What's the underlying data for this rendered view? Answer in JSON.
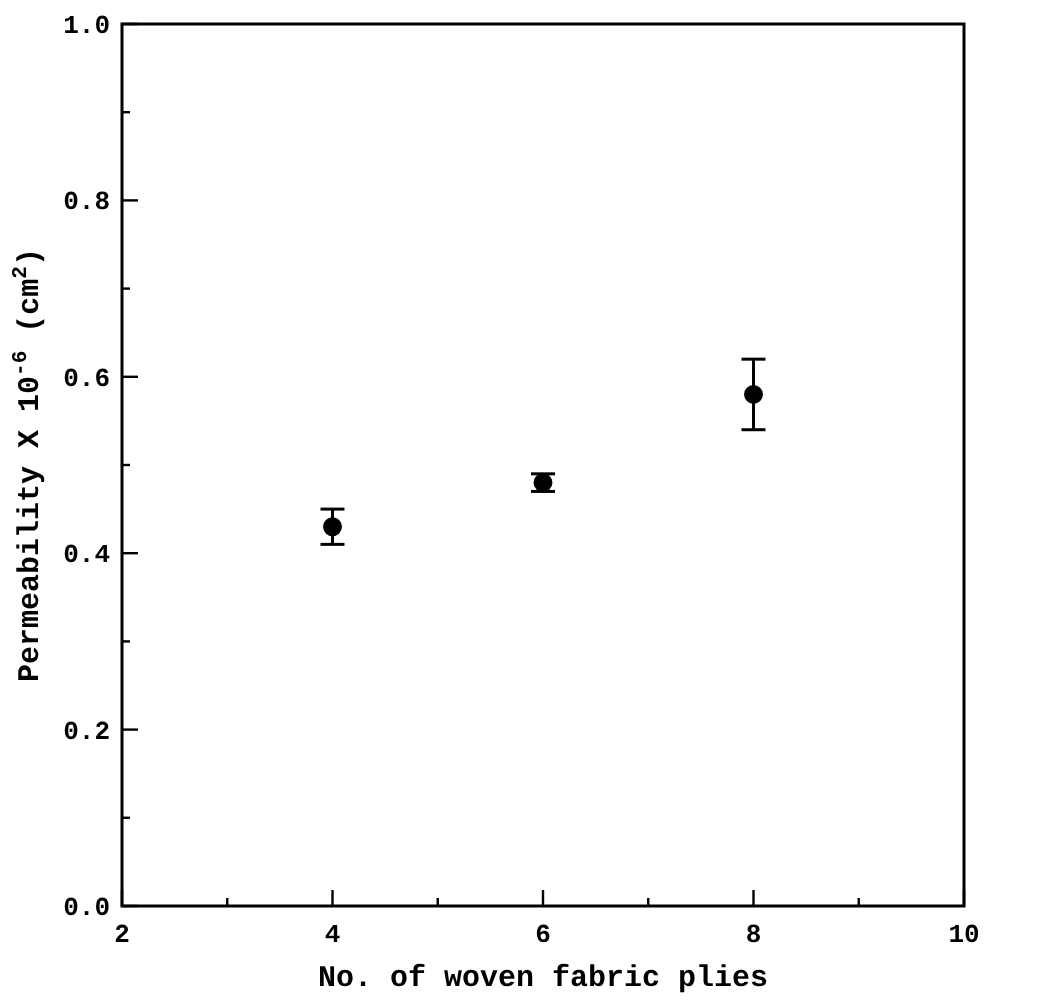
{
  "chart_data": {
    "type": "scatter",
    "xlabel": "No. of woven fabric plies",
    "ylabel": "Permeability X 10$^{-6}$ (cm$^{2}$)",
    "x": [
      4,
      6,
      8
    ],
    "values": [
      0.43,
      0.48,
      0.58
    ],
    "errors": [
      0.02,
      0.01,
      0.04
    ],
    "color": "#000000",
    "marker": "circle",
    "grid": false,
    "xlim": [
      2,
      10
    ],
    "xticks": [
      2,
      {
        "value": 3,
        "label": null
      },
      4,
      {
        "value": 5,
        "label": null
      },
      6,
      {
        "value": 7,
        "label": null
      },
      8,
      {
        "value": 9,
        "label": null
      },
      10
    ],
    "ylim": [
      0,
      1
    ],
    "yticks": [
      {
        "value": 0,
        "label": "0.0"
      },
      {
        "value": 0.1,
        "label": null
      },
      0.2,
      {
        "value": 0.3,
        "label": null
      },
      0.4,
      {
        "value": 0.5,
        "label": null
      },
      0.6,
      {
        "value": 0.7,
        "label": null
      },
      0.8,
      {
        "value": 0.9,
        "label": null
      },
      {
        "value": 1,
        "label": "1.0"
      }
    ]
  }
}
